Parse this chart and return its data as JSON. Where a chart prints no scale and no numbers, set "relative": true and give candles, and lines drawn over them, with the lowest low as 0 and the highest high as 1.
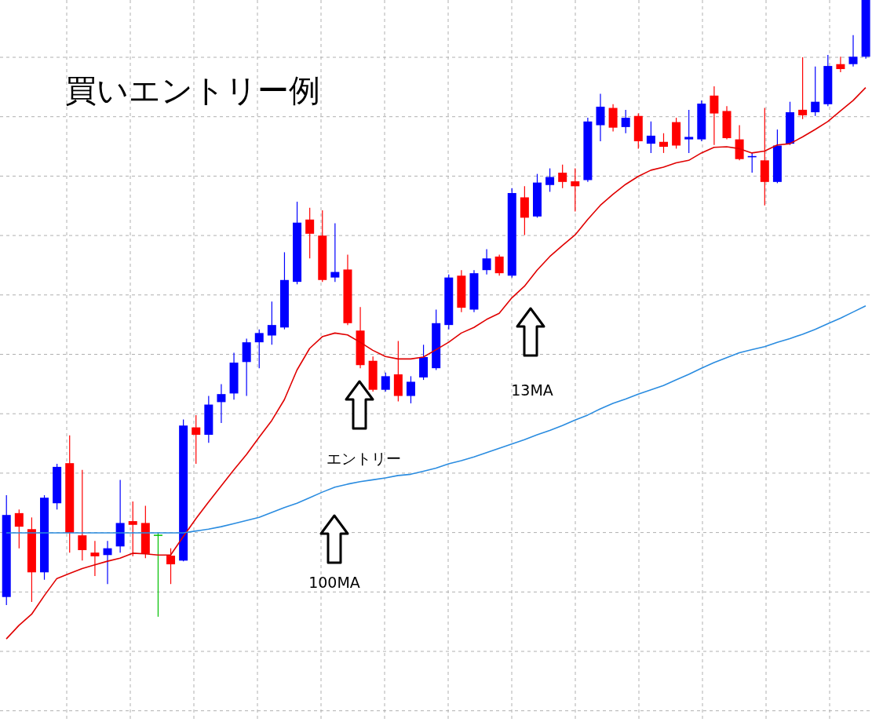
{
  "chart_data": {
    "type": "candlestick",
    "title": "買いエントリー例",
    "relative": true,
    "grid": true,
    "legend": false,
    "tick_labels": false,
    "categories": [
      null,
      null,
      null,
      null,
      null,
      null,
      null,
      null,
      null,
      null,
      null,
      null,
      null,
      null,
      null,
      null,
      null,
      null,
      null,
      null,
      null,
      null,
      null,
      null,
      null,
      null,
      null,
      null,
      null,
      null,
      null,
      null,
      null,
      null,
      null,
      null,
      null,
      null,
      null,
      null,
      null,
      null,
      null,
      null,
      null,
      null,
      null,
      null,
      null,
      null,
      null,
      null,
      null,
      null,
      null,
      null,
      null,
      null,
      null,
      null,
      null,
      null,
      null,
      null,
      null,
      null,
      null,
      null,
      null
    ],
    "ohlc": [
      [
        0.032,
        0.197,
        0.019,
        0.165
      ],
      [
        0.168,
        0.174,
        0.111,
        0.146
      ],
      [
        0.142,
        0.161,
        0.024,
        0.072
      ],
      [
        0.072,
        0.197,
        0.06,
        0.193
      ],
      [
        0.184,
        0.248,
        0.174,
        0.243
      ],
      [
        0.249,
        0.294,
        0.104,
        0.136
      ],
      [
        0.132,
        0.238,
        0.091,
        0.108
      ],
      [
        0.104,
        0.123,
        0.066,
        0.098
      ],
      [
        0.1,
        0.123,
        0.053,
        0.111
      ],
      [
        0.114,
        0.222,
        0.104,
        0.152
      ],
      [
        0.155,
        0.187,
        0.098,
        0.149
      ],
      [
        0.152,
        0.18,
        0.095,
        0.102
      ],
      [
        0.133,
        0.136,
        0,
        0.133
      ],
      [
        0.099,
        0.111,
        0.053,
        0.085
      ],
      [
        0.091,
        0.32,
        0.09,
        0.31
      ],
      [
        0.307,
        0.327,
        0.248,
        0.295
      ],
      [
        0.295,
        0.358,
        0.282,
        0.344
      ],
      [
        0.348,
        0.377,
        0.314,
        0.361
      ],
      [
        0.362,
        0.428,
        0.352,
        0.412
      ],
      [
        0.413,
        0.451,
        0.358,
        0.445
      ],
      [
        0.445,
        0.466,
        0.403,
        0.46
      ],
      [
        0.456,
        0.511,
        0.441,
        0.473
      ],
      [
        0.469,
        0.591,
        0.466,
        0.546
      ],
      [
        0.543,
        0.673,
        0.539,
        0.639
      ],
      [
        0.644,
        0.663,
        0.581,
        0.621
      ],
      [
        0.618,
        0.659,
        0.543,
        0.546
      ],
      [
        0.55,
        0.638,
        0.543,
        0.559
      ],
      [
        0.563,
        0.587,
        0.473,
        0.476
      ],
      [
        0.464,
        0.502,
        0.403,
        0.408
      ],
      [
        0.415,
        0.422,
        0.365,
        0.368
      ],
      [
        0.368,
        0.396,
        0.365,
        0.39
      ],
      [
        0.393,
        0.447,
        0.349,
        0.358
      ],
      [
        0.358,
        0.39,
        0.346,
        0.381
      ],
      [
        0.388,
        0.441,
        0.384,
        0.421
      ],
      [
        0.403,
        0.498,
        0.4,
        0.476
      ],
      [
        0.473,
        0.555,
        0.466,
        0.55
      ],
      [
        0.553,
        0.562,
        0.494,
        0.501
      ],
      [
        0.498,
        0.562,
        0.494,
        0.557
      ],
      [
        0.562,
        0.596,
        0.555,
        0.581
      ],
      [
        0.584,
        0.587,
        0.553,
        0.557
      ],
      [
        0.553,
        0.695,
        0.55,
        0.687
      ],
      [
        0.68,
        0.698,
        0.619,
        0.647
      ],
      [
        0.649,
        0.718,
        0.647,
        0.704
      ],
      [
        0.7,
        0.727,
        0.689,
        0.713
      ],
      [
        0.72,
        0.733,
        0.695,
        0.705
      ],
      [
        0.706,
        0.727,
        0.657,
        0.698
      ],
      [
        0.708,
        0.809,
        0.705,
        0.803
      ],
      [
        0.797,
        0.848,
        0.771,
        0.827
      ],
      [
        0.825,
        0.831,
        0.787,
        0.793
      ],
      [
        0.794,
        0.822,
        0.784,
        0.809
      ],
      [
        0.812,
        0.816,
        0.759,
        0.771
      ],
      [
        0.767,
        0.803,
        0.752,
        0.78
      ],
      [
        0.77,
        0.784,
        0.752,
        0.762
      ],
      [
        0.802,
        0.809,
        0.759,
        0.764
      ],
      [
        0.774,
        0.822,
        0.752,
        0.778
      ],
      [
        0.774,
        0.837,
        0.771,
        0.832
      ],
      [
        0.845,
        0.86,
        0.765,
        0.816
      ],
      [
        0.82,
        0.828,
        0.774,
        0.776
      ],
      [
        0.774,
        0.797,
        0.74,
        0.742
      ],
      [
        0.745,
        0.752,
        0.72,
        0.747
      ],
      [
        0.74,
        0.825,
        0.667,
        0.705
      ],
      [
        0.705,
        0.79,
        0.703,
        0.764
      ],
      [
        0.767,
        0.835,
        0.765,
        0.818
      ],
      [
        0.822,
        0.907,
        0.807,
        0.813
      ],
      [
        0.818,
        0.892,
        0.812,
        0.835
      ],
      [
        0.831,
        0.911,
        0.828,
        0.893
      ],
      [
        0.896,
        0.908,
        0.883,
        0.888
      ],
      [
        0.896,
        0.943,
        0.892,
        0.908
      ],
      [
        0.908,
        1,
        0.905,
        1
      ]
    ],
    "colors": [
      "#0000ff",
      "#ff0000",
      "#ff0000",
      "#0000ff",
      "#0000ff",
      "#ff0000",
      "#ff0000",
      "#ff0000",
      "#0000ff",
      "#0000ff",
      "#ff0000",
      "#ff0000",
      "#00c000",
      "#ff0000",
      "#0000ff",
      "#ff0000",
      "#0000ff",
      "#0000ff",
      "#0000ff",
      "#0000ff",
      "#0000ff",
      "#0000ff",
      "#0000ff",
      "#0000ff",
      "#ff0000",
      "#ff0000",
      "#0000ff",
      "#ff0000",
      "#ff0000",
      "#ff0000",
      "#0000ff",
      "#ff0000",
      "#0000ff",
      "#0000ff",
      "#0000ff",
      "#0000ff",
      "#ff0000",
      "#0000ff",
      "#0000ff",
      "#ff0000",
      "#0000ff",
      "#ff0000",
      "#0000ff",
      "#0000ff",
      "#ff0000",
      "#ff0000",
      "#0000ff",
      "#0000ff",
      "#ff0000",
      "#0000ff",
      "#ff0000",
      "#0000ff",
      "#ff0000",
      "#ff0000",
      "#0000ff",
      "#0000ff",
      "#ff0000",
      "#ff0000",
      "#ff0000",
      "#0000ff",
      "#ff0000",
      "#0000ff",
      "#0000ff",
      "#ff0000",
      "#0000ff",
      "#0000ff",
      "#ff0000",
      "#0000ff",
      "#0000ff"
    ],
    "series": [
      {
        "type": "line",
        "color": "#e00000",
        "values": [
          -0.036,
          -0.014,
          0.004,
          0.034,
          0.062,
          0.07,
          0.078,
          0.084,
          0.09,
          0.095,
          0.103,
          0.102,
          0.1,
          0.1,
          0.13,
          0.159,
          0.186,
          0.212,
          0.238,
          0.263,
          0.291,
          0.318,
          0.352,
          0.4,
          0.435,
          0.454,
          0.46,
          0.457,
          0.445,
          0.432,
          0.422,
          0.418,
          0.418,
          0.421,
          0.433,
          0.445,
          0.46,
          0.469,
          0.482,
          0.492,
          0.517,
          0.536,
          0.562,
          0.584,
          0.602,
          0.619,
          0.644,
          0.667,
          0.685,
          0.701,
          0.714,
          0.724,
          0.729,
          0.736,
          0.74,
          0.752,
          0.761,
          0.762,
          0.759,
          0.752,
          0.755,
          0.765,
          0.767,
          0.778,
          0.79,
          0.803,
          0.82,
          0.837,
          0.858
        ]
      },
      {
        "type": "line",
        "color": "#2a8ce0",
        "values": [
          0.136,
          0.136,
          0.136,
          0.136,
          0.136,
          0.136,
          0.136,
          0.136,
          0.136,
          0.136,
          0.136,
          0.136,
          0.136,
          0.136,
          0.136,
          0.139,
          0.142,
          0.146,
          0.151,
          0.156,
          0.161,
          0.169,
          0.177,
          0.184,
          0.193,
          0.202,
          0.21,
          0.215,
          0.219,
          0.222,
          0.225,
          0.229,
          0.231,
          0.236,
          0.241,
          0.248,
          0.253,
          0.259,
          0.266,
          0.273,
          0.28,
          0.287,
          0.295,
          0.302,
          0.31,
          0.319,
          0.327,
          0.337,
          0.346,
          0.353,
          0.361,
          0.368,
          0.375,
          0.384,
          0.393,
          0.403,
          0.412,
          0.42,
          0.428,
          0.433,
          0.438,
          0.445,
          0.451,
          0.458,
          0.466,
          0.475,
          0.484,
          0.494,
          0.504
        ]
      }
    ],
    "annotations": [
      "エントリー",
      "13MA",
      "100MA"
    ]
  }
}
